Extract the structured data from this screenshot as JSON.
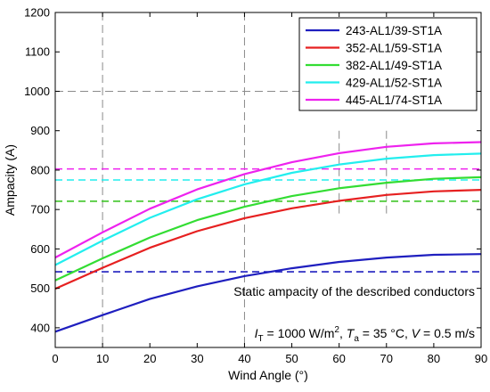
{
  "chart_data": {
    "type": "line",
    "title": "",
    "xlabel": "Wind Angle (°)",
    "ylabel": "Ampacity (A)",
    "xlim": [
      0,
      90
    ],
    "ylim": [
      350,
      1200
    ],
    "xticks": [
      0,
      10,
      20,
      30,
      40,
      50,
      60,
      70,
      80,
      90
    ],
    "yticks": [
      400,
      500,
      600,
      700,
      800,
      900,
      1000,
      1100,
      1200
    ],
    "grid": "dashed gray, partial",
    "legend_position": "top-right",
    "x": [
      0,
      10,
      20,
      30,
      40,
      50,
      60,
      70,
      80,
      90
    ],
    "series": [
      {
        "name": "243-AL1/39-ST1A",
        "color": "#1f1fbf",
        "values": [
          390,
          432,
          473,
          505,
          531,
          551,
          567,
          578,
          585,
          587
        ],
        "static": 542
      },
      {
        "name": "352-AL1/59-ST1A",
        "color": "#e62020",
        "values": [
          499,
          552,
          603,
          645,
          678,
          703,
          722,
          737,
          746,
          750
        ],
        "static": 721
      },
      {
        "name": "382-AL1/49-ST1A",
        "color": "#33dd33",
        "values": [
          520,
          576,
          629,
          673,
          707,
          734,
          754,
          768,
          778,
          782
        ],
        "static": 721
      },
      {
        "name": "429-AL1/52-ST1A",
        "color": "#22eeee",
        "values": [
          559,
          621,
          679,
          726,
          764,
          793,
          814,
          829,
          838,
          842
        ],
        "static": 775
      },
      {
        "name": "445-AL1/74-ST1A",
        "color": "#ee22ee",
        "values": [
          578,
          642,
          702,
          751,
          790,
          820,
          843,
          859,
          868,
          871
        ],
        "static": 803
      }
    ],
    "annotations": {
      "static": "Static ampacity of the described conductors",
      "cond_I": "I",
      "cond_I_sub": "T",
      "cond_I_val": " = 1000 W/m",
      "cond_I_sup": "2",
      "cond_T": "T",
      "cond_T_sub": "a",
      "cond_T_val": " = 35 °C, ",
      "cond_V": "V",
      "cond_V_val": " = 0.5 m/s"
    }
  }
}
